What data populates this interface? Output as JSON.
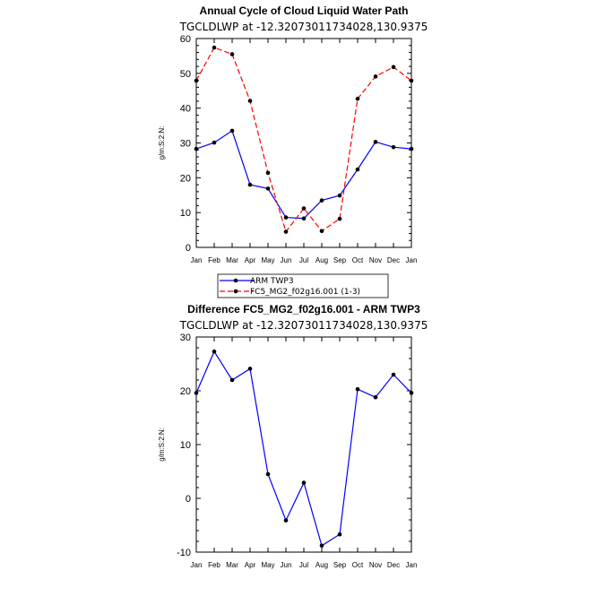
{
  "chart_data": [
    {
      "type": "line",
      "title": "Annual Cycle of Cloud Liquid Water Path",
      "subtitle": "TGCLDLWP at -12.32073011734028,130.9375",
      "ylabel": "g/m:S:2:N:",
      "xlabel": "",
      "ylim": [
        0,
        60
      ],
      "yticks": [
        0,
        10,
        20,
        30,
        40,
        50,
        60
      ],
      "categories": [
        "Jan",
        "Feb",
        "Mar",
        "Apr",
        "May",
        "Jun",
        "Jul",
        "Aug",
        "Sep",
        "Oct",
        "Nov",
        "Dec",
        "Jan"
      ],
      "series": [
        {
          "name": "ARM TWP3",
          "color": "#0000ff",
          "dash": "solid",
          "values": [
            28.3,
            30.1,
            33.5,
            18.0,
            16.9,
            8.6,
            8.3,
            13.5,
            14.9,
            22.4,
            30.3,
            28.8,
            28.3
          ]
        },
        {
          "name": "FC5_MG2_f02g16.001 (1-3)",
          "color": "#ff0000",
          "dash": "dashed",
          "values": [
            47.9,
            57.4,
            55.5,
            42.1,
            21.4,
            4.5,
            11.2,
            4.7,
            8.2,
            42.7,
            49.1,
            51.8,
            47.9
          ]
        }
      ]
    },
    {
      "type": "line",
      "title": "Difference FC5_MG2_f02g16.001 - ARM TWP3",
      "subtitle": "TGCLDLWP at -12.32073011734028,130.9375",
      "ylabel": "g/m:S:2:N:",
      "xlabel": "",
      "ylim": [
        -10,
        30
      ],
      "yticks": [
        -10,
        0,
        10,
        20,
        30
      ],
      "categories": [
        "Jan",
        "Feb",
        "Mar",
        "Apr",
        "May",
        "Jun",
        "Jul",
        "Aug",
        "Sep",
        "Oct",
        "Nov",
        "Dec",
        "Jan"
      ],
      "series": [
        {
          "name": "Difference",
          "color": "#0000ff",
          "dash": "solid",
          "values": [
            19.6,
            27.3,
            22.0,
            24.1,
            4.5,
            -4.1,
            2.9,
            -8.8,
            -6.7,
            20.3,
            18.8,
            23.0,
            19.6
          ]
        }
      ]
    }
  ]
}
